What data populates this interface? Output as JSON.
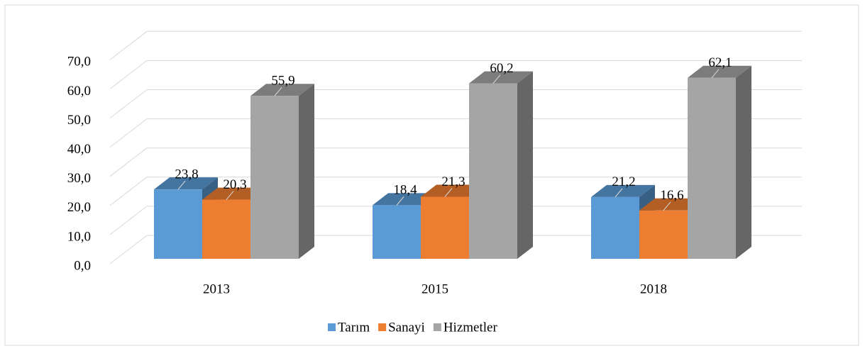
{
  "chart_data": {
    "type": "bar3d",
    "categories": [
      "2013",
      "2015",
      "2018"
    ],
    "series": [
      {
        "name": "Tarım",
        "color": "#5b9bd5",
        "values": [
          23.8,
          18.4,
          21.2
        ],
        "value_labels": [
          "23,8",
          "18,4",
          "21,2"
        ]
      },
      {
        "name": "Sanayi",
        "color": "#ed7d31",
        "values": [
          20.3,
          21.3,
          16.6
        ],
        "value_labels": [
          "20,3",
          "21,3",
          "16,6"
        ]
      },
      {
        "name": "Hizmetler",
        "color": "#a5a5a5",
        "values": [
          55.9,
          60.2,
          62.1
        ],
        "value_labels": [
          "55,9",
          "60,2",
          "62,1"
        ]
      }
    ],
    "ylim": [
      0,
      70
    ],
    "yticks": [
      {
        "value": 0,
        "label": "0,0"
      },
      {
        "value": 10,
        "label": "10,0"
      },
      {
        "value": 20,
        "label": "20,0"
      },
      {
        "value": 30,
        "label": "30,0"
      },
      {
        "value": 40,
        "label": "40,0"
      },
      {
        "value": 50,
        "label": "50,0"
      },
      {
        "value": 60,
        "label": "60,0"
      },
      {
        "value": 70,
        "label": "70,0"
      }
    ],
    "grid": true,
    "legend": "bottom"
  }
}
